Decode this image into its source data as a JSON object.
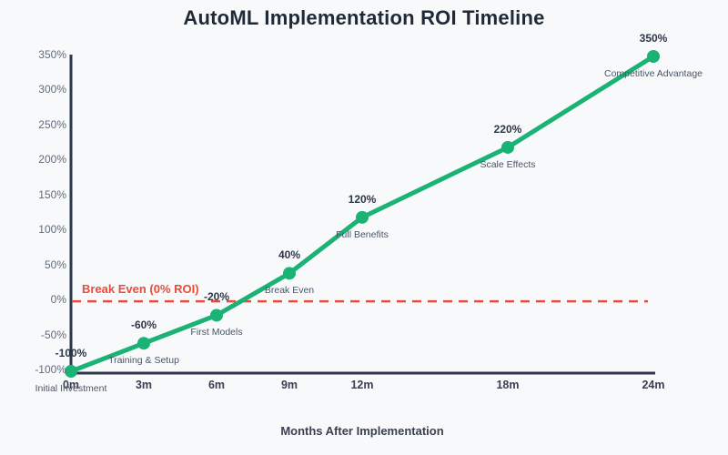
{
  "title": "AutoML Implementation ROI Timeline",
  "xlabel": "Months After Implementation",
  "colors": {
    "background": "#f8f9fa",
    "line": "#1ab275",
    "break_even": "#e74c3c",
    "axis": "#2d3748",
    "title": "#1f2937",
    "y_tick": "#5f6b7a",
    "x_tick": "#374151",
    "annotation": "#4a5568",
    "value_label": "#2d3748"
  },
  "chart_data": {
    "type": "line",
    "title": "AutoML Implementation ROI Timeline",
    "xlabel": "Months After Implementation",
    "ylabel": "",
    "x": [
      0,
      3,
      6,
      9,
      12,
      18,
      24
    ],
    "x_tick_labels": [
      "0m",
      "3m",
      "6m",
      "9m",
      "12m",
      "18m",
      "24m"
    ],
    "values": [
      -100,
      -60,
      -20,
      40,
      120,
      220,
      350
    ],
    "value_labels": [
      "-100%",
      "-60%",
      "-20%",
      "40%",
      "120%",
      "220%",
      "350%"
    ],
    "point_annotations": [
      "Initial Investment",
      "Training & Setup",
      "First Models",
      "Break Even",
      "Full Benefits",
      "Scale Effects",
      "Competitive Advantage"
    ],
    "y_ticks": [
      -100,
      -50,
      0,
      50,
      100,
      150,
      200,
      250,
      300,
      350
    ],
    "y_tick_labels": [
      "-100%",
      "-50%",
      "0%",
      "50%",
      "100%",
      "150%",
      "200%",
      "250%",
      "300%",
      "350%"
    ],
    "xlim": [
      0,
      24
    ],
    "ylim": [
      -100,
      350
    ],
    "reference_line": {
      "y": 0,
      "label": "Break Even (0% ROI)"
    },
    "grid": false,
    "legend": false
  }
}
